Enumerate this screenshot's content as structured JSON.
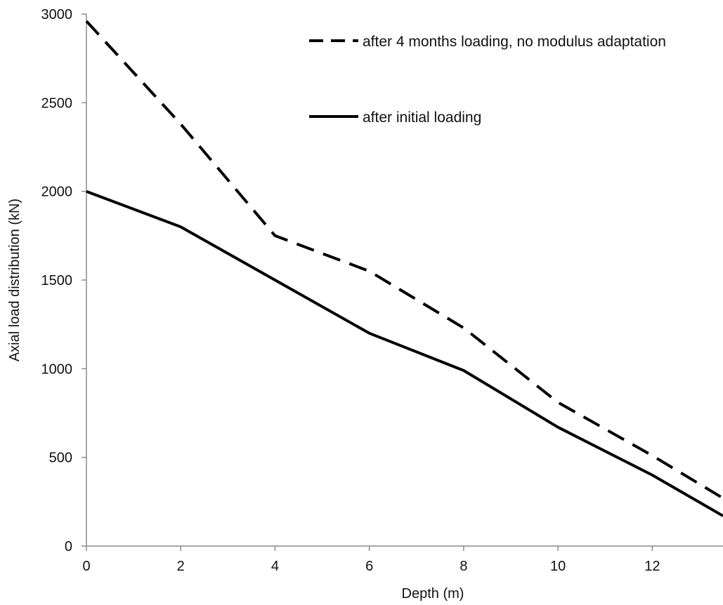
{
  "chart_data": {
    "type": "line",
    "title": "",
    "xlabel": "Depth (m)",
    "ylabel": "Axial load distribution (kN)",
    "xlim": [
      0,
      13.5
    ],
    "ylim": [
      0,
      3000
    ],
    "x_ticks": [
      0,
      2,
      4,
      6,
      8,
      10,
      12
    ],
    "y_ticks": [
      0,
      500,
      1000,
      1500,
      2000,
      2500,
      3000
    ],
    "grid": false,
    "legend_position": "top-right",
    "series": [
      {
        "name": "after 4 months loading, no modulus adaptation",
        "style": "dashed",
        "color": "#000000",
        "x": [
          0,
          2,
          4,
          6,
          8,
          10,
          12,
          13.5
        ],
        "y": [
          2960,
          2380,
          1750,
          1550,
          1230,
          810,
          510,
          270
        ]
      },
      {
        "name": "after initial loading",
        "style": "solid",
        "color": "#000000",
        "x": [
          0,
          2,
          4,
          6,
          8,
          10,
          12,
          13.5
        ],
        "y": [
          2000,
          1800,
          1500,
          1200,
          990,
          670,
          400,
          170
        ]
      }
    ]
  }
}
